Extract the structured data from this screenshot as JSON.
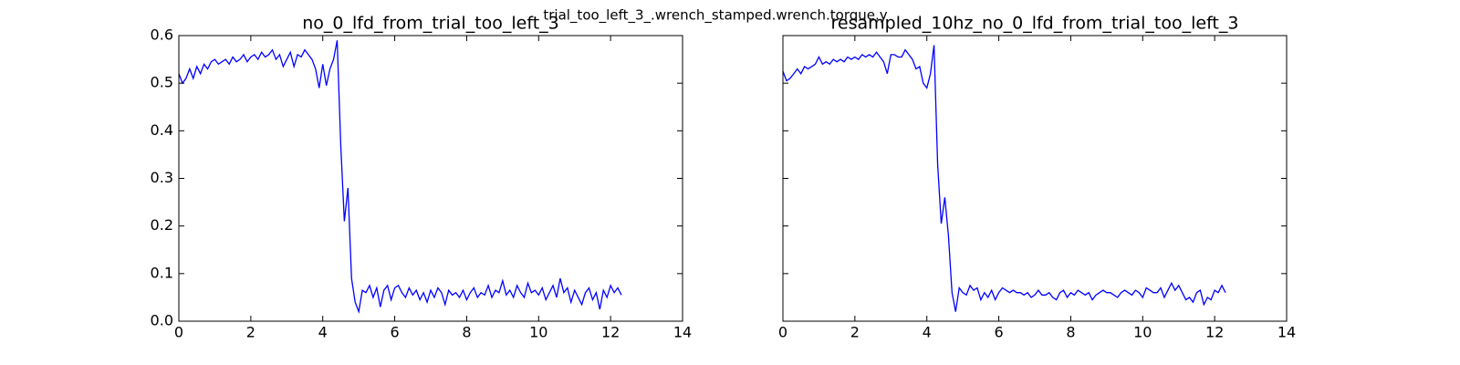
{
  "title": "trial_too_left_3_.wrench_stamped.wrench.torque.y",
  "chart_data": [
    {
      "type": "line",
      "title": "no_0_lfd_from_trial_too_left_3",
      "color": "#0000ff",
      "xlim": [
        0,
        14
      ],
      "ylim": [
        0,
        0.6
      ],
      "xticks": [
        0,
        2,
        4,
        6,
        8,
        10,
        12,
        14
      ],
      "yticks": [
        {
          "value": 0,
          "label": "0.0"
        },
        0.1,
        0.2,
        0.3,
        0.4,
        0.5,
        0.6
      ],
      "ytick_labels": true,
      "x": [
        0,
        0.1,
        0.2,
        0.3,
        0.4,
        0.5,
        0.6,
        0.7,
        0.8,
        0.9,
        1,
        1.1,
        1.2,
        1.3,
        1.4,
        1.5,
        1.6,
        1.7,
        1.8,
        1.9,
        2,
        2.1,
        2.2,
        2.3,
        2.4,
        2.5,
        2.6,
        2.7,
        2.8,
        2.9,
        3,
        3.1,
        3.2,
        3.3,
        3.4,
        3.5,
        3.6,
        3.7,
        3.8,
        3.9,
        4,
        4.1,
        4.2,
        4.3,
        4.4,
        4.5,
        4.6,
        4.7,
        4.8,
        4.9,
        5,
        5.1,
        5.2,
        5.3,
        5.4,
        5.5,
        5.6,
        5.7,
        5.8,
        5.9,
        6,
        6.1,
        6.2,
        6.3,
        6.4,
        6.5,
        6.6,
        6.7,
        6.8,
        6.9,
        7,
        7.1,
        7.2,
        7.3,
        7.4,
        7.5,
        7.6,
        7.7,
        7.8,
        7.9,
        8,
        8.1,
        8.2,
        8.3,
        8.4,
        8.5,
        8.6,
        8.7,
        8.8,
        8.9,
        9,
        9.1,
        9.2,
        9.3,
        9.4,
        9.5,
        9.6,
        9.7,
        9.8,
        9.9,
        10,
        10.1,
        10.2,
        10.3,
        10.4,
        10.5,
        10.6,
        10.7,
        10.8,
        10.9,
        11,
        11.1,
        11.2,
        11.3,
        11.4,
        11.5,
        11.6,
        11.7,
        11.8,
        11.9,
        12,
        12.1,
        12.2,
        12.3
      ],
      "values": [
        0.52,
        0.5,
        0.51,
        0.53,
        0.51,
        0.535,
        0.52,
        0.54,
        0.53,
        0.545,
        0.55,
        0.54,
        0.545,
        0.55,
        0.54,
        0.555,
        0.545,
        0.55,
        0.56,
        0.545,
        0.555,
        0.56,
        0.55,
        0.565,
        0.555,
        0.56,
        0.57,
        0.55,
        0.56,
        0.535,
        0.55,
        0.565,
        0.535,
        0.56,
        0.555,
        0.57,
        0.56,
        0.55,
        0.53,
        0.49,
        0.54,
        0.495,
        0.53,
        0.55,
        0.59,
        0.37,
        0.21,
        0.28,
        0.09,
        0.04,
        0.02,
        0.065,
        0.06,
        0.075,
        0.05,
        0.07,
        0.03,
        0.065,
        0.075,
        0.045,
        0.07,
        0.075,
        0.06,
        0.05,
        0.07,
        0.055,
        0.065,
        0.045,
        0.06,
        0.04,
        0.065,
        0.05,
        0.07,
        0.06,
        0.035,
        0.065,
        0.055,
        0.06,
        0.05,
        0.065,
        0.045,
        0.06,
        0.07,
        0.05,
        0.06,
        0.055,
        0.075,
        0.05,
        0.065,
        0.06,
        0.085,
        0.055,
        0.065,
        0.05,
        0.075,
        0.06,
        0.05,
        0.08,
        0.06,
        0.065,
        0.055,
        0.07,
        0.045,
        0.06,
        0.075,
        0.05,
        0.09,
        0.06,
        0.07,
        0.04,
        0.065,
        0.05,
        0.035,
        0.06,
        0.07,
        0.045,
        0.06,
        0.025,
        0.065,
        0.05,
        0.075,
        0.06,
        0.07,
        0.055
      ]
    },
    {
      "type": "line",
      "title": "resampled_10hz_no_0_lfd_from_trial_too_left_3",
      "color": "#0000ff",
      "xlim": [
        0,
        14
      ],
      "ylim": [
        0,
        0.6
      ],
      "xticks": [
        0,
        2,
        4,
        6,
        8,
        10,
        12,
        14
      ],
      "yticks": [
        0,
        0.1,
        0.2,
        0.3,
        0.4,
        0.5,
        0.6
      ],
      "ytick_labels": false,
      "x": [
        0,
        0.1,
        0.2,
        0.3,
        0.4,
        0.5,
        0.6,
        0.7,
        0.8,
        0.9,
        1,
        1.1,
        1.2,
        1.3,
        1.4,
        1.5,
        1.6,
        1.7,
        1.8,
        1.9,
        2,
        2.1,
        2.2,
        2.3,
        2.4,
        2.5,
        2.6,
        2.7,
        2.8,
        2.9,
        3,
        3.1,
        3.2,
        3.3,
        3.4,
        3.5,
        3.6,
        3.7,
        3.8,
        3.9,
        4,
        4.1,
        4.2,
        4.3,
        4.4,
        4.5,
        4.6,
        4.7,
        4.8,
        4.9,
        5,
        5.1,
        5.2,
        5.3,
        5.4,
        5.5,
        5.6,
        5.7,
        5.8,
        5.9,
        6,
        6.1,
        6.2,
        6.3,
        6.4,
        6.5,
        6.6,
        6.7,
        6.8,
        6.9,
        7,
        7.1,
        7.2,
        7.3,
        7.4,
        7.5,
        7.6,
        7.7,
        7.8,
        7.9,
        8,
        8.1,
        8.2,
        8.3,
        8.4,
        8.5,
        8.6,
        8.7,
        8.8,
        8.9,
        9,
        9.1,
        9.2,
        9.3,
        9.4,
        9.5,
        9.6,
        9.7,
        9.8,
        9.9,
        10,
        10.1,
        10.2,
        10.3,
        10.4,
        10.5,
        10.6,
        10.7,
        10.8,
        10.9,
        11,
        11.1,
        11.2,
        11.3,
        11.4,
        11.5,
        11.6,
        11.7,
        11.8,
        11.9,
        12,
        12.1,
        12.2,
        12.3
      ],
      "values": [
        0.525,
        0.505,
        0.51,
        0.52,
        0.53,
        0.52,
        0.535,
        0.53,
        0.535,
        0.54,
        0.555,
        0.54,
        0.545,
        0.54,
        0.55,
        0.545,
        0.55,
        0.545,
        0.555,
        0.55,
        0.555,
        0.55,
        0.56,
        0.555,
        0.56,
        0.555,
        0.565,
        0.555,
        0.545,
        0.52,
        0.56,
        0.56,
        0.555,
        0.555,
        0.57,
        0.56,
        0.55,
        0.53,
        0.535,
        0.5,
        0.49,
        0.52,
        0.58,
        0.33,
        0.205,
        0.26,
        0.18,
        0.06,
        0.02,
        0.07,
        0.06,
        0.055,
        0.075,
        0.065,
        0.07,
        0.045,
        0.06,
        0.05,
        0.065,
        0.045,
        0.06,
        0.07,
        0.065,
        0.06,
        0.065,
        0.06,
        0.06,
        0.055,
        0.06,
        0.05,
        0.055,
        0.065,
        0.055,
        0.055,
        0.06,
        0.05,
        0.045,
        0.06,
        0.065,
        0.05,
        0.06,
        0.055,
        0.065,
        0.06,
        0.055,
        0.06,
        0.045,
        0.055,
        0.06,
        0.065,
        0.06,
        0.06,
        0.055,
        0.05,
        0.06,
        0.065,
        0.06,
        0.055,
        0.065,
        0.06,
        0.05,
        0.07,
        0.065,
        0.06,
        0.06,
        0.07,
        0.05,
        0.065,
        0.08,
        0.065,
        0.075,
        0.06,
        0.045,
        0.05,
        0.04,
        0.06,
        0.065,
        0.035,
        0.05,
        0.045,
        0.065,
        0.06,
        0.075,
        0.06
      ]
    }
  ]
}
